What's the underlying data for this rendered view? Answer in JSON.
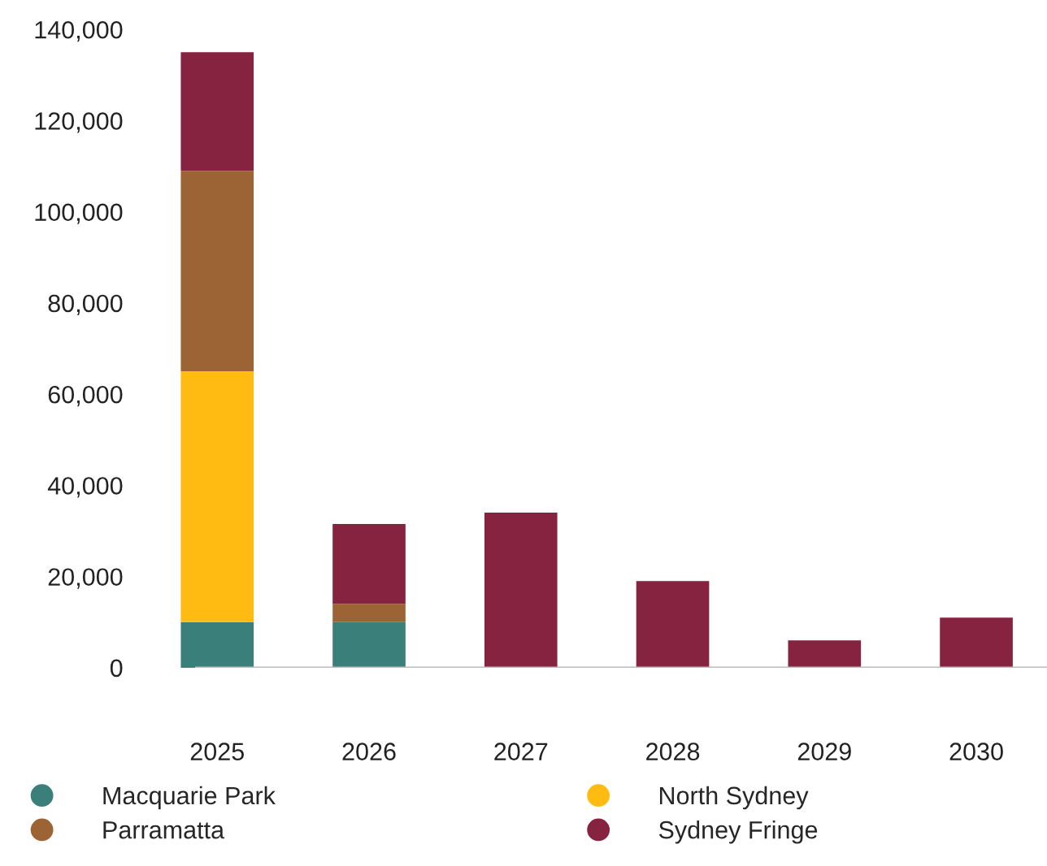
{
  "chart_data": {
    "type": "bar",
    "stacked": true,
    "categories": [
      "2025",
      "2026",
      "2027",
      "2028",
      "2029",
      "2030"
    ],
    "series": [
      {
        "name": "Macquarie Park",
        "color": "#3b7f7a",
        "values": [
          10000,
          10000,
          null,
          null,
          null,
          null
        ]
      },
      {
        "name": "North Sydney",
        "color": "#ffbb11",
        "values": [
          55000,
          null,
          null,
          null,
          null,
          null
        ]
      },
      {
        "name": "Parramatta",
        "color": "#9c6434",
        "values": [
          44000,
          4000,
          null,
          null,
          null,
          null
        ]
      },
      {
        "name": "Sydney Fringe",
        "color": "#862341",
        "values": [
          26000,
          17500,
          34000,
          19000,
          6000,
          11000
        ]
      }
    ],
    "ylim": [
      0,
      140000
    ],
    "yticks": [
      {
        "value": 0,
        "label": "0"
      },
      {
        "value": 20000,
        "label": "20,000"
      },
      {
        "value": 40000,
        "label": "40,000"
      },
      {
        "value": 60000,
        "label": "60,000"
      },
      {
        "value": 80000,
        "label": "80,000"
      },
      {
        "value": 100000,
        "label": "100,000"
      },
      {
        "value": 120000,
        "label": "120,000"
      },
      {
        "value": 140000,
        "label": "140,000"
      }
    ],
    "legend": "bottom",
    "marker": "circle",
    "grid": false
  }
}
